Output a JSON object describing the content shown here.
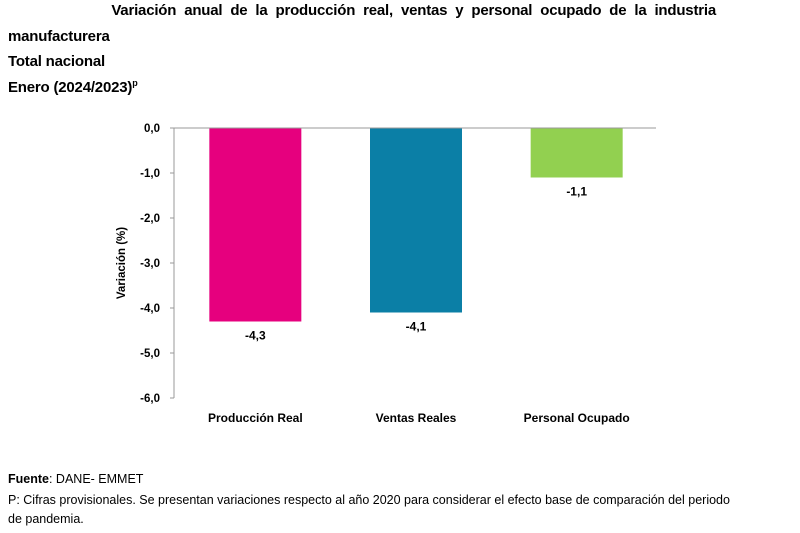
{
  "title": {
    "line1": "Variación anual de la producción real, ventas y personal ocupado de la industria",
    "line2": "manufacturera",
    "line3": "Total nacional",
    "line4": "Enero (2024/2023)",
    "line4_sup": "p"
  },
  "chart_data": {
    "type": "bar",
    "categories": [
      "Producción Real",
      "Ventas Reales",
      "Personal Ocupado"
    ],
    "values": [
      -4.3,
      -4.1,
      -1.1
    ],
    "value_labels": [
      "-4,3",
      "-4,1",
      "-1,1"
    ],
    "colors": [
      "#E6007E",
      "#0B7FA6",
      "#92D050"
    ],
    "ylabel": "Variación (%)",
    "xlabel": "",
    "ylim": [
      -6,
      0
    ],
    "yticks": [
      0,
      -1,
      -2,
      -3,
      -4,
      -5,
      -6
    ],
    "ytick_labels": [
      "0,0",
      "-1,0",
      "-2,0",
      "-3,0",
      "-4,0",
      "-5,0",
      "-6,0"
    ],
    "grid": false
  },
  "footer": {
    "source_label": "Fuente",
    "source_text": ": DANE- EMMET",
    "note_line1": "P: Cifras provisionales. Se presentan variaciones respecto al año 2020 para considerar el efecto base de comparación del periodo",
    "note_line2": "de pandemia."
  }
}
